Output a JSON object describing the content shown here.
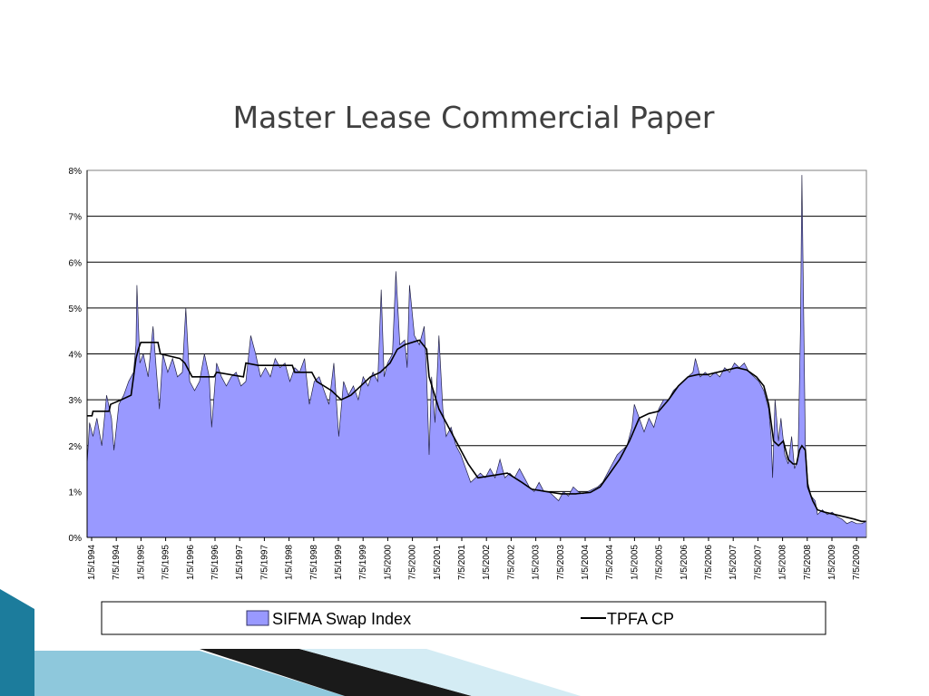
{
  "slide": {
    "title": "Master Lease Commercial Paper"
  },
  "chart_data": {
    "type": "area",
    "title": "",
    "xlabel": "",
    "ylabel": "",
    "ylim": [
      0,
      8
    ],
    "y_ticks": [
      "0%",
      "1%",
      "2%",
      "3%",
      "4%",
      "5%",
      "6%",
      "7%",
      "8%"
    ],
    "grid": true,
    "legend_position": "bottom",
    "x_ticks": [
      "1/5/1994",
      "7/5/1994",
      "1/5/1995",
      "7/5/1995",
      "1/5/1996",
      "7/5/1996",
      "1/5/1997",
      "7/5/1997",
      "1/5/1998",
      "7/5/1998",
      "1/5/1999",
      "7/5/1999",
      "1/5/2000",
      "7/5/2000",
      "1/5/2001",
      "7/5/2001",
      "1/5/2002",
      "7/5/2002",
      "1/5/2003",
      "7/5/2003",
      "1/5/2004",
      "7/5/2004",
      "1/5/2005",
      "7/5/2005",
      "1/5/2006",
      "7/5/2006",
      "1/5/2007",
      "7/5/2007",
      "1/5/2008",
      "7/5/2008",
      "1/5/2009",
      "7/5/2009"
    ],
    "x_range": [
      1994.0,
      2009.95
    ],
    "series": [
      {
        "name": "SIFMA Swap Index",
        "style": "area",
        "color": "#9999ff",
        "points": [
          [
            1994.0,
            1.6
          ],
          [
            1994.05,
            2.5
          ],
          [
            1994.12,
            2.2
          ],
          [
            1994.2,
            2.6
          ],
          [
            1994.3,
            2.0
          ],
          [
            1994.4,
            3.1
          ],
          [
            1994.5,
            2.6
          ],
          [
            1994.55,
            1.9
          ],
          [
            1994.65,
            2.9
          ],
          [
            1994.75,
            3.1
          ],
          [
            1994.85,
            3.4
          ],
          [
            1994.95,
            3.6
          ],
          [
            1995.0,
            4.2
          ],
          [
            1995.02,
            5.5
          ],
          [
            1995.08,
            3.8
          ],
          [
            1995.15,
            4.0
          ],
          [
            1995.25,
            3.5
          ],
          [
            1995.35,
            4.6
          ],
          [
            1995.42,
            3.6
          ],
          [
            1995.48,
            2.8
          ],
          [
            1995.55,
            4.0
          ],
          [
            1995.65,
            3.6
          ],
          [
            1995.75,
            3.9
          ],
          [
            1995.85,
            3.5
          ],
          [
            1995.95,
            3.6
          ],
          [
            1996.02,
            5.0
          ],
          [
            1996.1,
            3.4
          ],
          [
            1996.2,
            3.2
          ],
          [
            1996.3,
            3.4
          ],
          [
            1996.4,
            4.0
          ],
          [
            1996.5,
            3.5
          ],
          [
            1996.55,
            2.4
          ],
          [
            1996.65,
            3.8
          ],
          [
            1996.75,
            3.5
          ],
          [
            1996.85,
            3.3
          ],
          [
            1996.95,
            3.5
          ],
          [
            1997.05,
            3.6
          ],
          [
            1997.15,
            3.3
          ],
          [
            1997.25,
            3.4
          ],
          [
            1997.35,
            4.4
          ],
          [
            1997.45,
            4.0
          ],
          [
            1997.55,
            3.5
          ],
          [
            1997.65,
            3.7
          ],
          [
            1997.75,
            3.5
          ],
          [
            1997.85,
            3.9
          ],
          [
            1997.95,
            3.7
          ],
          [
            1998.05,
            3.8
          ],
          [
            1998.15,
            3.4
          ],
          [
            1998.25,
            3.7
          ],
          [
            1998.35,
            3.6
          ],
          [
            1998.45,
            3.9
          ],
          [
            1998.55,
            2.9
          ],
          [
            1998.65,
            3.4
          ],
          [
            1998.75,
            3.5
          ],
          [
            1998.85,
            3.2
          ],
          [
            1998.95,
            2.9
          ],
          [
            1999.05,
            3.8
          ],
          [
            1999.15,
            2.2
          ],
          [
            1999.25,
            3.4
          ],
          [
            1999.35,
            3.1
          ],
          [
            1999.45,
            3.3
          ],
          [
            1999.55,
            3.0
          ],
          [
            1999.65,
            3.5
          ],
          [
            1999.75,
            3.3
          ],
          [
            1999.85,
            3.6
          ],
          [
            1999.95,
            3.4
          ],
          [
            2000.02,
            5.4
          ],
          [
            2000.08,
            3.5
          ],
          [
            2000.15,
            3.8
          ],
          [
            2000.25,
            4.0
          ],
          [
            2000.32,
            5.8
          ],
          [
            2000.4,
            4.2
          ],
          [
            2000.5,
            4.3
          ],
          [
            2000.55,
            3.7
          ],
          [
            2000.6,
            5.5
          ],
          [
            2000.7,
            4.4
          ],
          [
            2000.8,
            4.2
          ],
          [
            2000.9,
            4.6
          ],
          [
            2000.95,
            3.5
          ],
          [
            2001.0,
            1.8
          ],
          [
            2001.05,
            3.5
          ],
          [
            2001.12,
            2.5
          ],
          [
            2001.2,
            4.4
          ],
          [
            2001.28,
            2.8
          ],
          [
            2001.35,
            2.2
          ],
          [
            2001.45,
            2.4
          ],
          [
            2001.55,
            2.0
          ],
          [
            2001.65,
            1.8
          ],
          [
            2001.75,
            1.5
          ],
          [
            2001.85,
            1.2
          ],
          [
            2001.95,
            1.3
          ],
          [
            2002.05,
            1.4
          ],
          [
            2002.15,
            1.3
          ],
          [
            2002.25,
            1.5
          ],
          [
            2002.35,
            1.3
          ],
          [
            2002.45,
            1.7
          ],
          [
            2002.55,
            1.3
          ],
          [
            2002.65,
            1.4
          ],
          [
            2002.75,
            1.3
          ],
          [
            2002.85,
            1.5
          ],
          [
            2002.95,
            1.3
          ],
          [
            2003.05,
            1.1
          ],
          [
            2003.15,
            1.0
          ],
          [
            2003.25,
            1.2
          ],
          [
            2003.35,
            1.0
          ],
          [
            2003.45,
            1.0
          ],
          [
            2003.55,
            0.9
          ],
          [
            2003.65,
            0.8
          ],
          [
            2003.75,
            1.0
          ],
          [
            2003.85,
            0.9
          ],
          [
            2003.95,
            1.1
          ],
          [
            2004.05,
            1.0
          ],
          [
            2004.15,
            0.95
          ],
          [
            2004.25,
            1.0
          ],
          [
            2004.35,
            1.05
          ],
          [
            2004.45,
            1.1
          ],
          [
            2004.55,
            1.2
          ],
          [
            2004.65,
            1.4
          ],
          [
            2004.75,
            1.6
          ],
          [
            2004.85,
            1.8
          ],
          [
            2004.95,
            1.9
          ],
          [
            2005.05,
            2.0
          ],
          [
            2005.15,
            2.4
          ],
          [
            2005.2,
            2.9
          ],
          [
            2005.3,
            2.6
          ],
          [
            2005.4,
            2.3
          ],
          [
            2005.5,
            2.6
          ],
          [
            2005.6,
            2.4
          ],
          [
            2005.7,
            2.8
          ],
          [
            2005.8,
            3.0
          ],
          [
            2005.9,
            3.0
          ],
          [
            2006.0,
            3.2
          ],
          [
            2006.1,
            3.3
          ],
          [
            2006.2,
            3.4
          ],
          [
            2006.3,
            3.5
          ],
          [
            2006.4,
            3.6
          ],
          [
            2006.45,
            3.9
          ],
          [
            2006.55,
            3.5
          ],
          [
            2006.65,
            3.6
          ],
          [
            2006.75,
            3.5
          ],
          [
            2006.85,
            3.6
          ],
          [
            2006.95,
            3.5
          ],
          [
            2007.05,
            3.7
          ],
          [
            2007.15,
            3.6
          ],
          [
            2007.25,
            3.8
          ],
          [
            2007.35,
            3.7
          ],
          [
            2007.45,
            3.8
          ],
          [
            2007.55,
            3.6
          ],
          [
            2007.65,
            3.5
          ],
          [
            2007.75,
            3.4
          ],
          [
            2007.85,
            3.2
          ],
          [
            2007.95,
            2.8
          ],
          [
            2008.0,
            2.2
          ],
          [
            2008.03,
            1.3
          ],
          [
            2008.08,
            3.0
          ],
          [
            2008.15,
            2.1
          ],
          [
            2008.2,
            2.6
          ],
          [
            2008.28,
            1.8
          ],
          [
            2008.35,
            1.6
          ],
          [
            2008.42,
            2.2
          ],
          [
            2008.48,
            1.5
          ],
          [
            2008.55,
            1.7
          ],
          [
            2008.6,
            4.5
          ],
          [
            2008.63,
            7.9
          ],
          [
            2008.67,
            4.5
          ],
          [
            2008.7,
            2.0
          ],
          [
            2008.75,
            1.2
          ],
          [
            2008.82,
            0.9
          ],
          [
            2008.9,
            0.8
          ],
          [
            2008.95,
            0.5
          ],
          [
            2009.05,
            0.6
          ],
          [
            2009.15,
            0.5
          ],
          [
            2009.25,
            0.55
          ],
          [
            2009.35,
            0.45
          ],
          [
            2009.45,
            0.4
          ],
          [
            2009.55,
            0.3
          ],
          [
            2009.65,
            0.35
          ],
          [
            2009.75,
            0.3
          ],
          [
            2009.85,
            0.3
          ],
          [
            2009.95,
            0.35
          ]
        ]
      },
      {
        "name": "TPFA CP",
        "style": "line",
        "color": "#000000",
        "points": [
          [
            1994.0,
            2.65
          ],
          [
            1994.1,
            2.65
          ],
          [
            1994.12,
            2.75
          ],
          [
            1994.45,
            2.75
          ],
          [
            1994.48,
            2.9
          ],
          [
            1994.7,
            3.0
          ],
          [
            1994.9,
            3.1
          ],
          [
            1995.0,
            3.9
          ],
          [
            1995.05,
            4.1
          ],
          [
            1995.1,
            4.25
          ],
          [
            1995.45,
            4.25
          ],
          [
            1995.5,
            4.0
          ],
          [
            1995.9,
            3.9
          ],
          [
            1996.0,
            3.8
          ],
          [
            1996.15,
            3.5
          ],
          [
            1996.6,
            3.5
          ],
          [
            1996.65,
            3.6
          ],
          [
            1997.2,
            3.5
          ],
          [
            1997.25,
            3.8
          ],
          [
            1997.5,
            3.75
          ],
          [
            1998.2,
            3.75
          ],
          [
            1998.25,
            3.6
          ],
          [
            1998.6,
            3.6
          ],
          [
            1998.7,
            3.4
          ],
          [
            1999.0,
            3.2
          ],
          [
            1999.2,
            3.0
          ],
          [
            1999.4,
            3.1
          ],
          [
            1999.6,
            3.3
          ],
          [
            1999.8,
            3.5
          ],
          [
            2000.0,
            3.6
          ],
          [
            2000.2,
            3.8
          ],
          [
            2000.35,
            4.1
          ],
          [
            2000.5,
            4.2
          ],
          [
            2000.8,
            4.3
          ],
          [
            2000.95,
            4.1
          ],
          [
            2001.0,
            3.5
          ],
          [
            2001.2,
            2.8
          ],
          [
            2001.4,
            2.4
          ],
          [
            2001.6,
            2.0
          ],
          [
            2001.8,
            1.6
          ],
          [
            2002.0,
            1.3
          ],
          [
            2002.3,
            1.35
          ],
          [
            2002.6,
            1.4
          ],
          [
            2002.9,
            1.2
          ],
          [
            2003.1,
            1.05
          ],
          [
            2003.4,
            1.0
          ],
          [
            2003.7,
            0.95
          ],
          [
            2004.0,
            0.95
          ],
          [
            2004.3,
            0.98
          ],
          [
            2004.5,
            1.1
          ],
          [
            2004.7,
            1.4
          ],
          [
            2004.9,
            1.7
          ],
          [
            2005.1,
            2.1
          ],
          [
            2005.3,
            2.6
          ],
          [
            2005.5,
            2.7
          ],
          [
            2005.7,
            2.75
          ],
          [
            2005.9,
            3.0
          ],
          [
            2006.1,
            3.3
          ],
          [
            2006.3,
            3.5
          ],
          [
            2006.5,
            3.55
          ],
          [
            2006.7,
            3.55
          ],
          [
            2006.9,
            3.6
          ],
          [
            2007.1,
            3.65
          ],
          [
            2007.3,
            3.7
          ],
          [
            2007.5,
            3.65
          ],
          [
            2007.7,
            3.5
          ],
          [
            2007.85,
            3.3
          ],
          [
            2007.95,
            2.9
          ],
          [
            2008.05,
            2.1
          ],
          [
            2008.15,
            2.0
          ],
          [
            2008.25,
            2.1
          ],
          [
            2008.35,
            1.7
          ],
          [
            2008.45,
            1.6
          ],
          [
            2008.52,
            1.6
          ],
          [
            2008.58,
            1.9
          ],
          [
            2008.63,
            2.0
          ],
          [
            2008.7,
            1.9
          ],
          [
            2008.75,
            1.1
          ],
          [
            2008.85,
            0.8
          ],
          [
            2008.95,
            0.6
          ],
          [
            2009.1,
            0.55
          ],
          [
            2009.3,
            0.5
          ],
          [
            2009.5,
            0.45
          ],
          [
            2009.7,
            0.4
          ],
          [
            2009.85,
            0.35
          ],
          [
            2009.95,
            0.35
          ]
        ]
      }
    ]
  }
}
